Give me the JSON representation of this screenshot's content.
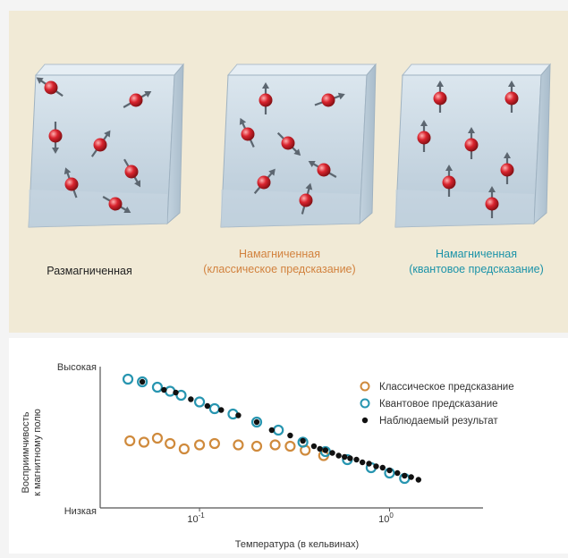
{
  "diagram": {
    "states": [
      {
        "label": "Размагниченная",
        "color": "#222222"
      },
      {
        "label_line1": "Намагниченная",
        "label_line2": "(классическое предсказание)",
        "color": "#d2823e"
      },
      {
        "label_line1": "Намагниченная",
        "label_line2": "(квантовое предсказание)",
        "color": "#1c93a8"
      }
    ],
    "spin_orientations_deg": [
      [
        -55,
        60,
        180,
        35,
        150,
        -20,
        120
      ],
      [
        0,
        70,
        -25,
        135,
        -60,
        40,
        15
      ],
      [
        0,
        0,
        0,
        0,
        0,
        0,
        0
      ]
    ]
  },
  "chart_data": {
    "type": "scatter",
    "xlabel": "Температура (в кельвинах)",
    "ylabel_line1": "Восприимчивость",
    "ylabel_line2": "к магнитному полю",
    "xscale": "log",
    "xlim": [
      0.03,
      2.5
    ],
    "ylim": [
      0,
      10
    ],
    "y_ticks": [
      {
        "value": 10,
        "label": "Высокая"
      },
      {
        "value": 0,
        "label": "Низкая"
      }
    ],
    "x_ticks": [
      {
        "value": 0.1,
        "label_base": "10",
        "label_exp": "-1"
      },
      {
        "value": 1,
        "label_base": "10",
        "label_exp": "0"
      }
    ],
    "legend_position": "top-right",
    "series": [
      {
        "name": "Классическое предсказание",
        "marker": "open-circle",
        "color": "#cf8a3c",
        "x": [
          0.043,
          0.051,
          0.06,
          0.07,
          0.083,
          0.1,
          0.12,
          0.16,
          0.2,
          0.25,
          0.3,
          0.36,
          0.45
        ],
        "y": [
          5.0,
          4.9,
          5.2,
          4.8,
          4.4,
          4.7,
          4.8,
          4.7,
          4.6,
          4.7,
          4.6,
          4.3,
          3.9
        ]
      },
      {
        "name": "Квантовое предсказание",
        "marker": "open-circle",
        "color": "#2795b0",
        "x": [
          0.042,
          0.05,
          0.06,
          0.07,
          0.08,
          0.1,
          0.12,
          0.15,
          0.2,
          0.26,
          0.35,
          0.46,
          0.6,
          0.8,
          1.0,
          1.2
        ],
        "y": [
          9.6,
          9.4,
          9.0,
          8.7,
          8.4,
          7.9,
          7.4,
          7.0,
          6.4,
          5.8,
          4.9,
          4.2,
          3.6,
          3.0,
          2.6,
          2.2
        ]
      },
      {
        "name": "Наблюдаемый результат",
        "marker": "filled-dot",
        "color": "#111111",
        "x": [
          0.05,
          0.065,
          0.075,
          0.09,
          0.11,
          0.13,
          0.16,
          0.2,
          0.24,
          0.3,
          0.35,
          0.4,
          0.43,
          0.46,
          0.5,
          0.54,
          0.58,
          0.62,
          0.67,
          0.72,
          0.78,
          0.85,
          0.92,
          1.0,
          1.1,
          1.2,
          1.3,
          1.42
        ],
        "y": [
          9.4,
          8.8,
          8.6,
          8.1,
          7.6,
          7.3,
          6.9,
          6.4,
          5.8,
          5.4,
          5.0,
          4.6,
          4.4,
          4.3,
          4.1,
          3.9,
          3.8,
          3.7,
          3.6,
          3.4,
          3.3,
          3.1,
          3.0,
          2.8,
          2.6,
          2.4,
          2.3,
          2.1
        ]
      }
    ]
  }
}
